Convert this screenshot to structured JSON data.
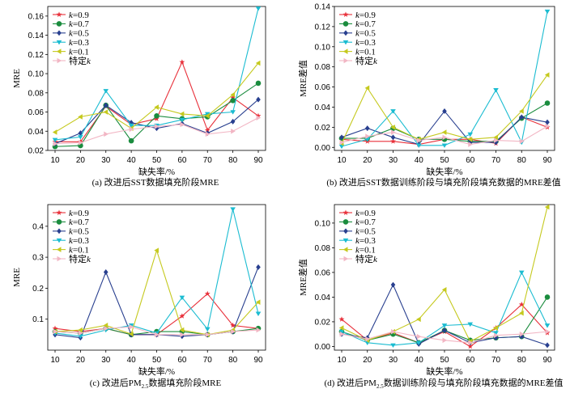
{
  "colors": {
    "k09": "#e8303a",
    "k07": "#1a8c3e",
    "k05": "#283f8f",
    "k03": "#1bbcd1",
    "k01": "#c5c91e",
    "special": "#f2b6c4"
  },
  "legend": [
    {
      "prefix": "k",
      "label": "=0.9",
      "key": "k09",
      "marker": "star"
    },
    {
      "prefix": "k",
      "label": "=0.7",
      "key": "k07",
      "marker": "circle"
    },
    {
      "prefix": "k",
      "label": "=0.5",
      "key": "k05",
      "marker": "diamond"
    },
    {
      "prefix": "k",
      "label": "=0.3",
      "key": "k03",
      "marker": "triangle-down"
    },
    {
      "prefix": "k",
      "label": "=0.1",
      "key": "k01",
      "marker": "triangle-left"
    },
    {
      "prefix": "特定",
      "label": "k",
      "key": "special",
      "marker": "triangle-right"
    }
  ],
  "chart_data": [
    {
      "type": "line",
      "caption": "(a) 改进后SST数据填充阶段MRE",
      "ylabel": "MRE",
      "xlabel": "缺失率/%",
      "x": [
        10,
        20,
        30,
        40,
        50,
        60,
        70,
        80,
        90
      ],
      "ylim": [
        0.02,
        0.17
      ],
      "yticks": [
        0.02,
        0.04,
        0.06,
        0.08,
        0.1,
        0.12,
        0.14,
        0.16
      ],
      "ytick_labels": [
        "0.02",
        "0.04",
        "0.06",
        "0.08",
        "0.10",
        "0.12",
        "0.14",
        "0.16"
      ],
      "series": [
        {
          "key": "k09",
          "values": [
            0.029,
            0.029,
            0.066,
            0.047,
            0.053,
            0.112,
            0.041,
            0.075,
            0.056
          ]
        },
        {
          "key": "k07",
          "values": [
            0.024,
            0.025,
            0.067,
            0.03,
            0.056,
            0.053,
            0.055,
            0.072,
            0.09
          ]
        },
        {
          "key": "k05",
          "values": [
            0.027,
            0.038,
            0.067,
            0.049,
            0.043,
            0.048,
            0.038,
            0.05,
            0.073
          ]
        },
        {
          "key": "k03",
          "values": [
            0.031,
            0.034,
            0.082,
            0.046,
            0.046,
            0.052,
            0.058,
            0.06,
            0.168
          ]
        },
        {
          "key": "k01",
          "values": [
            0.039,
            0.055,
            0.06,
            0.043,
            0.065,
            0.058,
            0.056,
            0.078,
            0.111
          ]
        },
        {
          "key": "special",
          "values": [
            0.027,
            0.028,
            0.037,
            0.042,
            0.045,
            0.047,
            0.037,
            0.04,
            0.054
          ]
        }
      ]
    },
    {
      "type": "line",
      "caption": "(b) 改进后SST数据训练阶段与填充阶段填充数据的MRE差值",
      "ylabel": "MRE差值",
      "xlabel": "缺失率/%",
      "x": [
        10,
        20,
        30,
        40,
        50,
        60,
        70,
        80,
        90
      ],
      "ylim": [
        -0.003,
        0.14
      ],
      "yticks": [
        0,
        0.02,
        0.04,
        0.06,
        0.08,
        0.1,
        0.12,
        0.14
      ],
      "ytick_labels": [
        "0.00",
        "0.02",
        "0.04",
        "0.06",
        "0.08",
        "0.10",
        "0.12",
        "0.14"
      ],
      "series": [
        {
          "key": "k09",
          "values": [
            0.008,
            0.006,
            0.006,
            0.003,
            0.008,
            0.008,
            0.004,
            0.03,
            0.02
          ]
        },
        {
          "key": "k07",
          "values": [
            0.009,
            0.009,
            0.019,
            0.008,
            0.008,
            0.006,
            0.006,
            0.029,
            0.044
          ]
        },
        {
          "key": "k05",
          "values": [
            0.01,
            0.019,
            0.01,
            0.003,
            0.036,
            0.005,
            0.005,
            0.03,
            0.025
          ]
        },
        {
          "key": "k03",
          "values": [
            0.001,
            0.008,
            0.036,
            0.002,
            0.002,
            0.013,
            0.057,
            0.005,
            0.135
          ]
        },
        {
          "key": "k01",
          "values": [
            0.004,
            0.059,
            0.02,
            0.008,
            0.015,
            0.008,
            0.01,
            0.036,
            0.072
          ]
        },
        {
          "key": "special",
          "values": [
            0.005,
            0.011,
            0.015,
            0.007,
            0.01,
            0.003,
            0.007,
            0.006,
            0.021
          ]
        }
      ]
    },
    {
      "type": "line",
      "caption": "(c) 改进后PM",
      "caption_sub": "2.5",
      "caption_rest": "数据填充阶段MRE",
      "ylabel": "MRE",
      "xlabel": "缺失率/%",
      "x": [
        10,
        20,
        30,
        40,
        50,
        60,
        70,
        80,
        90
      ],
      "ylim": [
        0.0,
        0.47
      ],
      "yticks": [
        0.1,
        0.2,
        0.3,
        0.4
      ],
      "ytick_labels": [
        "0.1",
        "0.2",
        "0.3",
        "0.4"
      ],
      "series": [
        {
          "key": "k09",
          "values": [
            0.07,
            0.06,
            0.07,
            0.05,
            0.05,
            0.11,
            0.182,
            0.08,
            0.07
          ]
        },
        {
          "key": "k07",
          "values": [
            0.06,
            0.055,
            0.07,
            0.05,
            0.06,
            0.06,
            0.05,
            0.06,
            0.07
          ]
        },
        {
          "key": "k05",
          "values": [
            0.05,
            0.04,
            0.252,
            0.05,
            0.05,
            0.045,
            0.05,
            0.06,
            0.268
          ]
        },
        {
          "key": "k03",
          "values": [
            0.055,
            0.045,
            0.065,
            0.08,
            0.055,
            0.17,
            0.068,
            0.455,
            0.118
          ]
        },
        {
          "key": "k01",
          "values": [
            0.06,
            0.065,
            0.08,
            0.052,
            0.322,
            0.065,
            0.05,
            0.065,
            0.155
          ]
        },
        {
          "key": "special",
          "values": [
            0.06,
            0.055,
            0.07,
            0.075,
            0.05,
            0.05,
            0.05,
            0.06,
            0.065
          ]
        }
      ]
    },
    {
      "type": "line",
      "caption": "(d) 改进后PM",
      "caption_sub": "2.5",
      "caption_rest": "数据训练阶段与填充阶段填充数据的MRE差值",
      "ylabel": "MRE差值",
      "xlabel": "缺失率/%",
      "x": [
        10,
        20,
        30,
        40,
        50,
        60,
        70,
        80,
        90
      ],
      "ylim": [
        -0.003,
        0.115
      ],
      "yticks": [
        0,
        0.02,
        0.04,
        0.06,
        0.08,
        0.1
      ],
      "ytick_labels": [
        "0.00",
        "0.02",
        "0.04",
        "0.06",
        "0.08",
        "0.10"
      ],
      "series": [
        {
          "key": "k09",
          "values": [
            0.022,
            0.005,
            0.011,
            0.003,
            0.012,
            0.0,
            0.015,
            0.034,
            0.011
          ]
        },
        {
          "key": "k07",
          "values": [
            0.012,
            0.005,
            0.01,
            0.003,
            0.013,
            0.005,
            0.007,
            0.008,
            0.04
          ]
        },
        {
          "key": "k05",
          "values": [
            0.01,
            0.007,
            0.05,
            0.002,
            0.013,
            0.003,
            0.007,
            0.008,
            0.001
          ]
        },
        {
          "key": "k03",
          "values": [
            0.012,
            0.003,
            0.001,
            0.003,
            0.017,
            0.018,
            0.011,
            0.06,
            0.017
          ]
        },
        {
          "key": "k01",
          "values": [
            0.015,
            0.005,
            0.012,
            0.022,
            0.046,
            0.004,
            0.015,
            0.027,
            0.113
          ]
        },
        {
          "key": "special",
          "values": [
            0.01,
            0.006,
            0.012,
            0.008,
            0.005,
            0.003,
            0.009,
            0.01,
            0.012
          ]
        }
      ]
    }
  ]
}
